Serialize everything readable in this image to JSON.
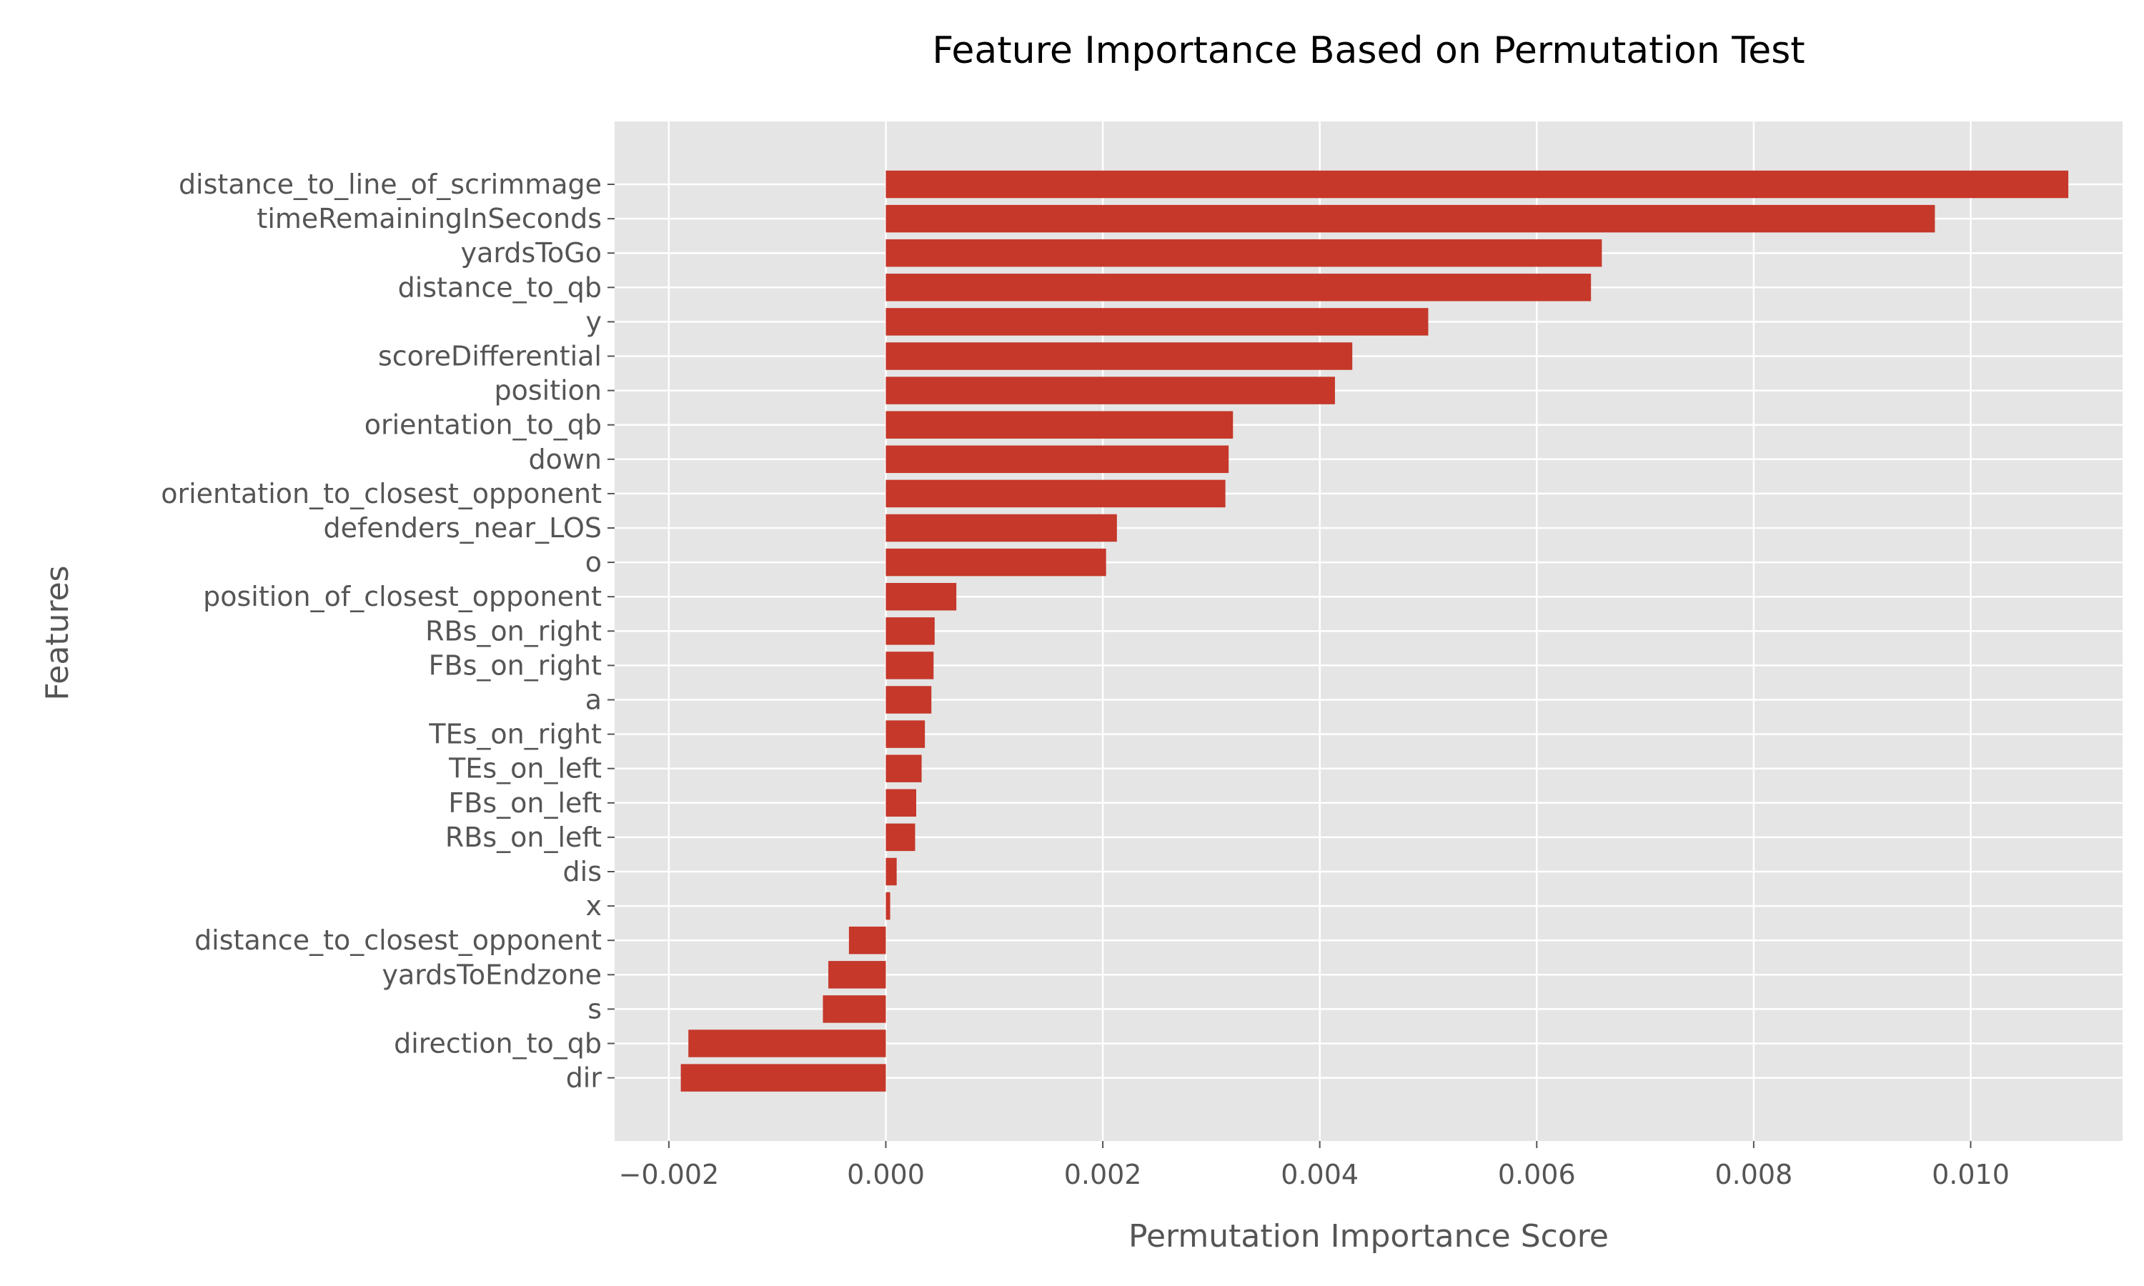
{
  "chart_data": {
    "type": "bar",
    "orientation": "horizontal",
    "title": "Feature Importance Based on Permutation Test",
    "xlabel": "Permutation Importance Score",
    "ylabel": "Features",
    "xlim": [
      -0.0025,
      0.0114
    ],
    "xticks": [
      -0.002,
      0.0,
      0.002,
      0.004,
      0.006,
      0.008,
      0.01
    ],
    "xtick_labels": [
      "−0.002",
      "0.000",
      "0.002",
      "0.004",
      "0.006",
      "0.008",
      "0.010"
    ],
    "grid": true,
    "bar_color": "#c5382a",
    "background_color": "#e5e5e5",
    "grid_color": "#ffffff",
    "categories": [
      "distance_to_line_of_scrimmage",
      "timeRemainingInSeconds",
      "yardsToGo",
      "distance_to_qb",
      "y",
      "scoreDifferential",
      "position",
      "orientation_to_qb",
      "down",
      "orientation_to_closest_opponent",
      "defenders_near_LOS",
      "o",
      "position_of_closest_opponent",
      "RBs_on_right",
      "FBs_on_right",
      "a",
      "TEs_on_right",
      "TEs_on_left",
      "FBs_on_left",
      "RBs_on_left",
      "dis",
      "x",
      "distance_to_closest_opponent",
      "yardsToEndzone",
      "s",
      "direction_to_qb",
      "dir"
    ],
    "values": [
      0.0109,
      0.00967,
      0.0066,
      0.0065,
      0.005,
      0.0043,
      0.00414,
      0.0032,
      0.00316,
      0.00313,
      0.00213,
      0.00203,
      0.00065,
      0.00045,
      0.00044,
      0.00042,
      0.00036,
      0.00033,
      0.00028,
      0.00027,
      0.0001,
      4e-05,
      -0.00034,
      -0.00053,
      -0.00058,
      -0.00182,
      -0.00189
    ]
  }
}
